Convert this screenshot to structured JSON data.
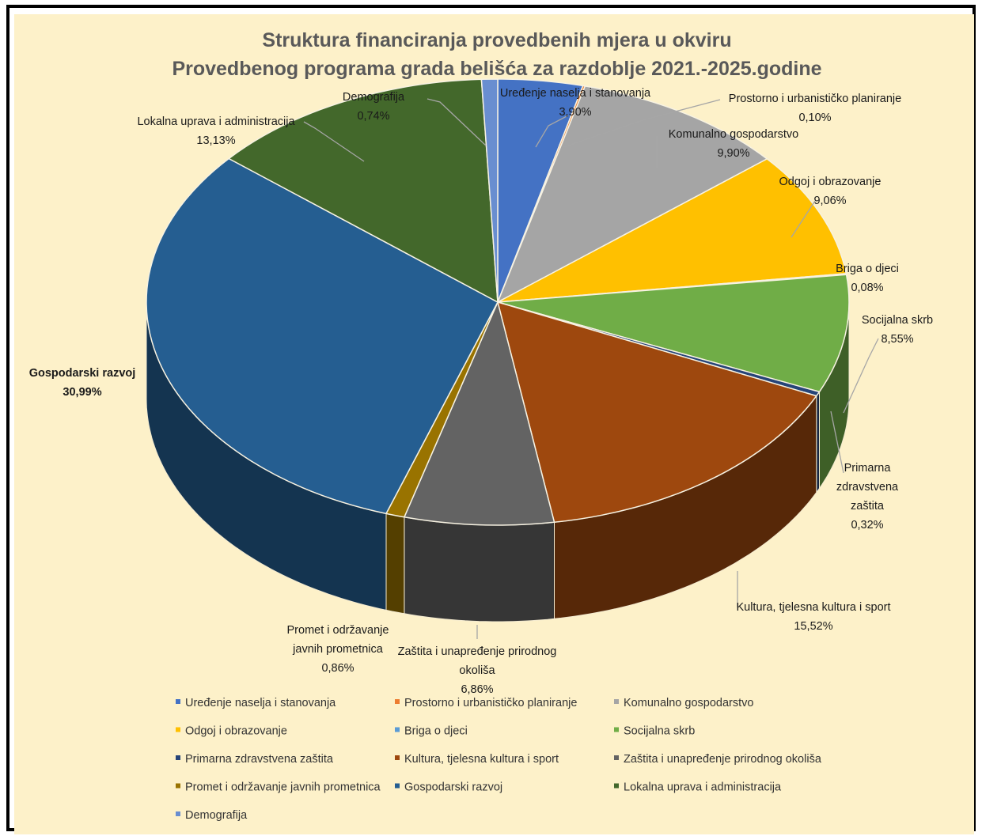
{
  "chart_data": {
    "type": "pie",
    "variant": "3d-pie",
    "title_lines": [
      "Struktura financiranja  provedbenih mjera u okviru",
      "Provedbenog programa grada belišća za razdoblje 2021.-2025.godine"
    ],
    "slices": [
      {
        "name": "Uređenje naselja i stanovanja",
        "value": 3.9,
        "label": "3,90%",
        "color": "#4472c4"
      },
      {
        "name": "Prostorno i urbanističko planiranje",
        "value": 0.1,
        "label": "0,10%",
        "color": "#ed7d31"
      },
      {
        "name": "Komunalno gospodarstvo",
        "value": 9.9,
        "label": "9,90%",
        "color": "#a5a5a5"
      },
      {
        "name": "Odgoj i obrazovanje",
        "value": 9.06,
        "label": "9,06%",
        "color": "#ffc000"
      },
      {
        "name": "Briga o djeci",
        "value": 0.08,
        "label": "0,08%",
        "color": "#5b9bd5"
      },
      {
        "name": "Socijalna skrb",
        "value": 8.55,
        "label": "8,55%",
        "color": "#70ad47"
      },
      {
        "name": "Primarna zdravstvena zaštita",
        "value": 0.32,
        "label": "0,32%",
        "color": "#264478"
      },
      {
        "name": "Kultura, tjelesna kultura i sport",
        "value": 15.52,
        "label": "15,52%",
        "color": "#9e480e"
      },
      {
        "name": "Zaštita i unapređenje prirodnog okoliša",
        "value": 6.86,
        "label": "6,86%",
        "color": "#636363"
      },
      {
        "name": "Promet i održavanje javnih prometnica",
        "value": 0.86,
        "label": "0,86%",
        "color": "#997300"
      },
      {
        "name": "Gospodarski razvoj",
        "value": 30.99,
        "label": "30,99%",
        "color": "#255e91"
      },
      {
        "name": "Lokalna uprava i administracija",
        "value": 13.13,
        "label": "13,13%",
        "color": "#43682b"
      },
      {
        "name": "Demografija",
        "value": 0.74,
        "label": "0,74%",
        "color": "#698ed0"
      }
    ],
    "data_labels": [
      {
        "lines": [
          "Uređenje naselja i stanovanja",
          "3,90%"
        ]
      },
      {
        "lines": [
          "Prostorno i urbanističko planiranje",
          "0,10%"
        ]
      },
      {
        "lines": [
          "Komunalno gospodarstvo",
          "9,90%"
        ]
      },
      {
        "lines": [
          "Odgoj i obrazovanje",
          "9,06%"
        ]
      },
      {
        "lines": [
          "Briga o djeci",
          "0,08%"
        ]
      },
      {
        "lines": [
          "Socijalna skrb",
          "8,55%"
        ]
      },
      {
        "lines": [
          "Primarna",
          "zdravstvena",
          "zaštita",
          "0,32%"
        ]
      },
      {
        "lines": [
          "Kultura, tjelesna kultura i sport",
          "15,52%"
        ]
      },
      {
        "lines": [
          "Zaštita i unapređenje prirodnog",
          "okoliša",
          "6,86%"
        ]
      },
      {
        "lines": [
          "Promet i održavanje",
          "javnih prometnica",
          "0,86%"
        ]
      },
      {
        "lines": [
          "Gospodarski razvoj",
          "30,99%"
        ],
        "bold": true
      },
      {
        "lines": [
          "Lokalna uprava i administracija",
          "13,13%"
        ]
      },
      {
        "lines": [
          "Demografija",
          "0,74%"
        ]
      }
    ],
    "legend": {
      "position": "bottom",
      "entries": [
        "Uređenje naselja i stanovanja",
        "Prostorno i urbanističko planiranje",
        "Komunalno gospodarstvo",
        "Odgoj i obrazovanje",
        "Briga o djeci",
        "Socijalna skrb",
        "Primarna zdravstvena zaštita",
        "Kultura, tjelesna kultura i sport",
        "Zaštita i unapređenje prirodnog okoliša",
        "Promet i održavanje javnih prometnica",
        "Gospodarski razvoj",
        "Lokalna uprava i administracija",
        "Demografija"
      ]
    },
    "background_color": "#fdf1c9"
  }
}
